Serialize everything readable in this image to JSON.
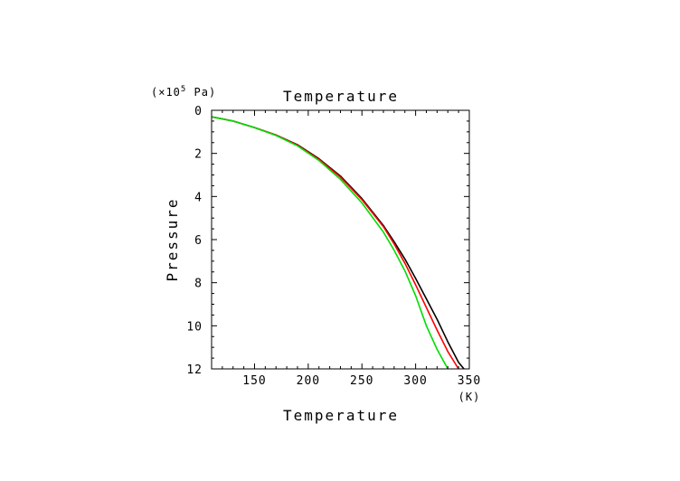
{
  "chart_data": {
    "type": "line",
    "title": "Temperature",
    "xlabel": "Temperature",
    "ylabel": "Pressure",
    "x_unit": "(K)",
    "y_unit_prefix": "(×10",
    "y_unit_exp": "5",
    "y_unit_suffix": " Pa)",
    "xlim": [
      110,
      350
    ],
    "ylim": [
      0,
      12
    ],
    "y_inverted": true,
    "grid": false,
    "x_ticks": [
      150,
      200,
      250,
      300,
      350
    ],
    "y_ticks": [
      0,
      2,
      4,
      6,
      8,
      10,
      12
    ],
    "x_tick_labels": [
      "150",
      "200",
      "250",
      "300",
      "350"
    ],
    "y_tick_labels": [
      "0",
      "2",
      "4",
      "6",
      "8",
      "10",
      "12"
    ],
    "series": [
      {
        "color": "#000000",
        "x": [
          110,
          130,
          150,
          170,
          190,
          210,
          230,
          250,
          270,
          280,
          290,
          300,
          310,
          320,
          330,
          340,
          345
        ],
        "y": [
          0.3,
          0.5,
          0.8,
          1.15,
          1.6,
          2.25,
          3.05,
          4.1,
          5.35,
          6.1,
          6.9,
          7.8,
          8.75,
          9.7,
          10.75,
          11.7,
          12
        ]
      },
      {
        "color": "#ff0000",
        "x": [
          110,
          130,
          150,
          170,
          190,
          210,
          230,
          250,
          270,
          280,
          290,
          300,
          310,
          320,
          330,
          340
        ],
        "y": [
          0.3,
          0.5,
          0.8,
          1.15,
          1.62,
          2.28,
          3.1,
          4.15,
          5.4,
          6.2,
          7.1,
          8.1,
          9.15,
          10.2,
          11.2,
          12
        ]
      },
      {
        "color": "#00dd00",
        "x": [
          110,
          130,
          150,
          170,
          190,
          210,
          230,
          250,
          270,
          280,
          290,
          300,
          310,
          320,
          330
        ],
        "y": [
          0.3,
          0.5,
          0.8,
          1.17,
          1.65,
          2.33,
          3.2,
          4.3,
          5.65,
          6.5,
          7.45,
          8.6,
          10.0,
          11.1,
          12
        ]
      }
    ]
  }
}
